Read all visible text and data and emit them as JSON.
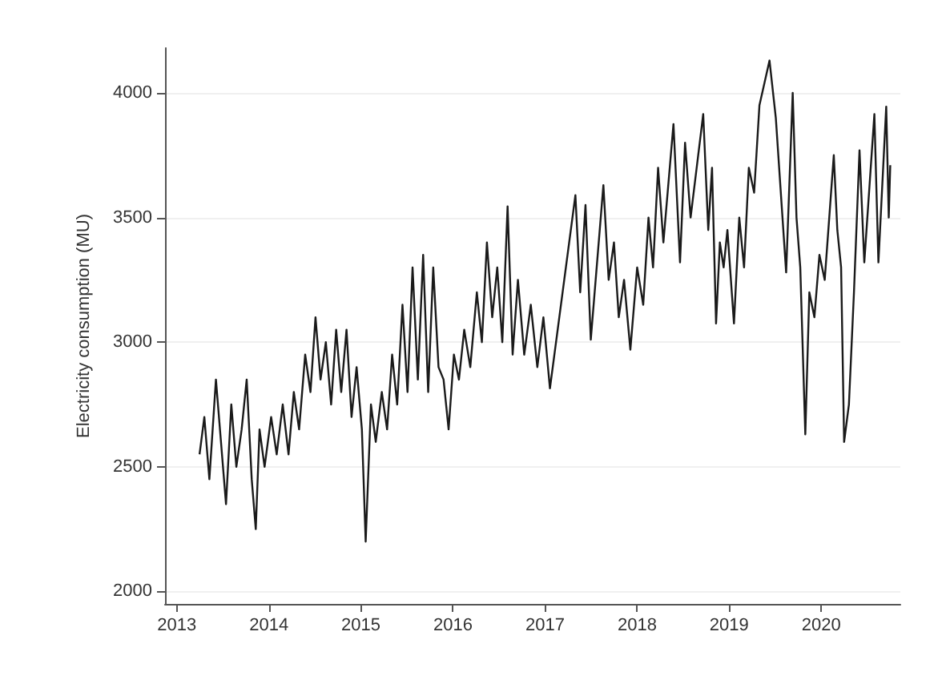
{
  "chart_data": {
    "type": "line",
    "ylabel": "Electricity consumption (MU)",
    "x": [
      "2013-04-01",
      "2013-04-20",
      "2013-05-10",
      "2013-06-05",
      "2013-06-25",
      "2013-07-15",
      "2013-08-05",
      "2013-08-25",
      "2013-09-15",
      "2013-10-05",
      "2013-10-25",
      "2013-11-10",
      "2013-11-25",
      "2013-12-15",
      "2014-01-10",
      "2014-02-01",
      "2014-02-25",
      "2014-03-20",
      "2014-04-10",
      "2014-05-01",
      "2014-05-25",
      "2014-06-15",
      "2014-07-05",
      "2014-07-25",
      "2014-08-15",
      "2014-09-05",
      "2014-09-25",
      "2014-10-15",
      "2014-11-05",
      "2014-11-25",
      "2014-12-15",
      "2015-01-05",
      "2015-01-20",
      "2015-02-10",
      "2015-03-01",
      "2015-03-25",
      "2015-04-15",
      "2015-05-05",
      "2015-05-25",
      "2015-06-15",
      "2015-07-05",
      "2015-07-25",
      "2015-08-15",
      "2015-09-05",
      "2015-09-25",
      "2015-10-15",
      "2015-11-05",
      "2015-11-25",
      "2015-12-15",
      "2016-01-05",
      "2016-01-25",
      "2016-02-15",
      "2016-03-10",
      "2016-04-05",
      "2016-04-25",
      "2016-05-15",
      "2016-06-05",
      "2016-06-25",
      "2016-07-15",
      "2016-08-05",
      "2016-08-25",
      "2016-09-15",
      "2016-10-10",
      "2016-11-05",
      "2016-12-01",
      "2016-12-25",
      "2017-01-20",
      "2017-05-01",
      "2017-05-20",
      "2017-06-10",
      "2017-07-01",
      "2017-08-20",
      "2017-09-10",
      "2017-10-01",
      "2017-10-20",
      "2017-11-10",
      "2017-12-05",
      "2018-01-01",
      "2018-01-25",
      "2018-02-15",
      "2018-03-05",
      "2018-03-25",
      "2018-04-15",
      "2018-05-25",
      "2018-06-20",
      "2018-07-10",
      "2018-08-01",
      "2018-09-20",
      "2018-10-10",
      "2018-10-25",
      "2018-11-10",
      "2018-11-25",
      "2018-12-10",
      "2018-12-25",
      "2019-01-20",
      "2019-02-10",
      "2019-03-01",
      "2019-03-20",
      "2019-04-10",
      "2019-05-01",
      "2019-06-10",
      "2019-07-05",
      "2019-08-15",
      "2019-09-10",
      "2019-09-25",
      "2019-10-10",
      "2019-10-30",
      "2019-11-15",
      "2019-12-05",
      "2019-12-25",
      "2020-01-15",
      "2020-02-20",
      "2020-03-05",
      "2020-03-20",
      "2020-04-01",
      "2020-04-20",
      "2020-05-10",
      "2020-06-01",
      "2020-06-20",
      "2020-07-30",
      "2020-08-15",
      "2020-09-15",
      "2020-09-25",
      "2020-10-01"
    ],
    "series": [
      {
        "color": "#1a1a1a",
        "values": [
          2550,
          2700,
          2450,
          2850,
          2600,
          2350,
          2750,
          2500,
          2650,
          2850,
          2450,
          2250,
          2650,
          2500,
          2700,
          2550,
          2750,
          2550,
          2800,
          2650,
          2950,
          2800,
          3100,
          2850,
          3000,
          2750,
          3050,
          2800,
          3050,
          2700,
          2900,
          2650,
          2200,
          2750,
          2600,
          2800,
          2650,
          2950,
          2750,
          3150,
          2800,
          3300,
          2850,
          3350,
          2800,
          3300,
          2900,
          2850,
          2650,
          2950,
          2850,
          3050,
          2900,
          3200,
          3000,
          3400,
          3100,
          3300,
          3000,
          3545,
          2950,
          3250,
          2950,
          3150,
          2900,
          3100,
          2815,
          3590,
          3200,
          3550,
          3010,
          3630,
          3250,
          3400,
          3100,
          3250,
          2970,
          3300,
          3150,
          3500,
          3300,
          3700,
          3400,
          3875,
          3320,
          3800,
          3500,
          3915,
          3450,
          3700,
          3075,
          3400,
          3300,
          3450,
          3075,
          3500,
          3300,
          3700,
          3600,
          3950,
          4130,
          3900,
          3280,
          4000,
          3500,
          3300,
          2630,
          3200,
          3100,
          3350,
          3250,
          3750,
          3450,
          3300,
          2600,
          2750,
          3200,
          3770,
          3320,
          3915,
          3320,
          3945,
          3500,
          3710
        ]
      }
    ],
    "xlim": [
      "2012-11-15",
      "2020-11-10"
    ],
    "xticks": [
      "2013",
      "2014",
      "2015",
      "2016",
      "2017",
      "2018",
      "2019",
      "2020"
    ],
    "ylim": [
      1950,
      4180
    ],
    "yticks": [
      2000,
      2500,
      3000,
      3500,
      4000
    ],
    "grid": "y",
    "marker": "none",
    "line_style": "solid"
  }
}
